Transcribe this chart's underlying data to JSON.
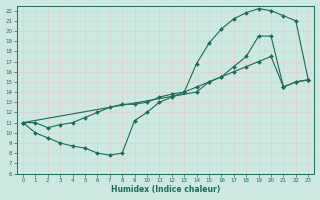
{
  "background_color": "#cce8e0",
  "grid_color": "#b0d0c8",
  "line_color": "#1a6b5a",
  "xlabel": "Humidex (Indice chaleur)",
  "xlim_min": -0.5,
  "xlim_max": 23.5,
  "ylim_min": 6,
  "ylim_max": 22.5,
  "xticks": [
    0,
    1,
    2,
    3,
    4,
    5,
    6,
    7,
    8,
    9,
    10,
    11,
    12,
    13,
    14,
    15,
    16,
    17,
    18,
    19,
    20,
    21,
    22,
    23
  ],
  "yticks": [
    6,
    7,
    8,
    9,
    10,
    11,
    12,
    13,
    14,
    15,
    16,
    17,
    18,
    19,
    20,
    21,
    22
  ],
  "line1_x": [
    0,
    1,
    2,
    3,
    4,
    5,
    6,
    7,
    8,
    9,
    10,
    11,
    12,
    13,
    14,
    15,
    16,
    17,
    18,
    19,
    20,
    21,
    22,
    23
  ],
  "line1_y": [
    11,
    10,
    9.5,
    9,
    8.7,
    8.5,
    8,
    7.8,
    8,
    11.2,
    12,
    13,
    13.5,
    14,
    16.8,
    18.8,
    20.2,
    21.2,
    21.8,
    22.2,
    22,
    21.5,
    21,
    15.2
  ],
  "line2_x": [
    0,
    14,
    15,
    16,
    17,
    18,
    19,
    20,
    21,
    22,
    23
  ],
  "line2_y": [
    11,
    14,
    15,
    15.5,
    16.5,
    17.5,
    19.5,
    19.5,
    14.5,
    15,
    15.2
  ],
  "line3_x": [
    0,
    1,
    2,
    3,
    4,
    5,
    6,
    7,
    8,
    9,
    10,
    11,
    12,
    13,
    14,
    15,
    16,
    17,
    18,
    19,
    20,
    21,
    22,
    23
  ],
  "line3_y": [
    11,
    11,
    10.5,
    10.8,
    11,
    11.5,
    12,
    12.5,
    12.8,
    12.8,
    13,
    13.5,
    13.8,
    14,
    14.5,
    15,
    15.5,
    16,
    16.5,
    17,
    17.5,
    14.5,
    15,
    15.2
  ]
}
